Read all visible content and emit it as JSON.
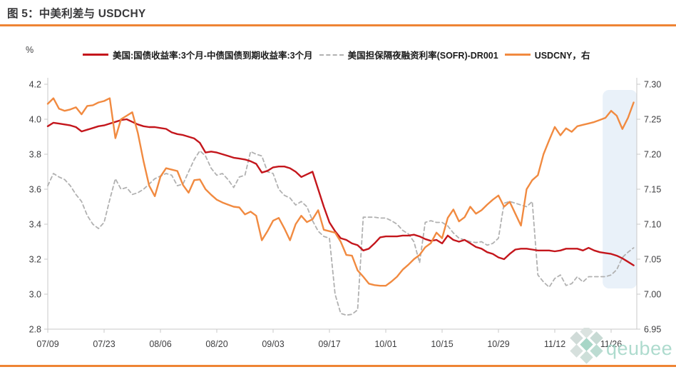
{
  "figure": {
    "title": "图 5：中美利差与 USDCHY",
    "unit_label_left": "%",
    "watermark_text": "qeubee"
  },
  "legend": [
    {
      "key": "us_cn_spread_3m",
      "label": "美国:国债收益率:3个月-中债国债到期收益率:3个月",
      "color": "#C4161C",
      "style": "solid"
    },
    {
      "key": "sofr_dr001",
      "label": "美国担保隔夜融资利率(SOFR)-DR001",
      "color": "#B1B1B1",
      "style": "dashed"
    },
    {
      "key": "usdcny",
      "label": "USDCNY，右",
      "color": "#F18A40",
      "style": "solid"
    }
  ],
  "colors": {
    "accent_orange": "#EE8434",
    "axis_line": "#C8C8C8",
    "tick_text": "#3E3E40",
    "title_text": "#39393B",
    "band_fill": "#E9F1F9",
    "watermark": "#A6D8C9"
  },
  "chart_data": {
    "type": "line",
    "title": "图 5：中美利差与 USDCHY",
    "grid": false,
    "legend_position": "top",
    "x_tick_labels": [
      "07/09",
      "07/23",
      "08/06",
      "08/20",
      "09/03",
      "09/17",
      "10/01",
      "10/15",
      "10/29",
      "11/12",
      "11/26"
    ],
    "x_tick_indices": [
      0,
      10,
      20,
      30,
      40,
      50,
      60,
      70,
      80,
      90,
      100
    ],
    "x_index_range": [
      0,
      104.6
    ],
    "left_axis": {
      "label": "%",
      "min": 2.8,
      "max": 4.2,
      "tick_step": 0.2,
      "ticks": [
        "4.2",
        "4.0",
        "3.8",
        "3.6",
        "3.4",
        "3.2",
        "3.0",
        "2.8"
      ]
    },
    "right_axis": {
      "label": "USDCNY",
      "min": 6.95,
      "max": 7.3,
      "tick_step": 0.05,
      "ticks": [
        "7.30",
        "7.25",
        "7.20",
        "7.15",
        "7.10",
        "7.05",
        "7.00",
        "6.95"
      ]
    },
    "highlight_band": {
      "x0_index": 98.5,
      "x1_index": 104.6,
      "color": "#E9F1F9"
    },
    "series": [
      {
        "key": "sofr_dr001",
        "name": "美国担保隔夜融资利率(SOFR)-DR001",
        "axis": "left",
        "color": "#B1B1B1",
        "dash": true,
        "values": [
          3.62,
          3.69,
          3.67,
          3.655,
          3.62,
          3.57,
          3.53,
          3.45,
          3.4,
          3.375,
          3.41,
          3.54,
          3.66,
          3.6,
          3.61,
          3.57,
          3.58,
          3.6,
          3.63,
          3.66,
          3.675,
          3.69,
          3.68,
          3.62,
          3.63,
          3.7,
          3.77,
          3.82,
          3.79,
          3.72,
          3.68,
          3.69,
          3.655,
          3.61,
          3.67,
          3.68,
          3.815,
          3.8,
          3.79,
          3.7,
          3.69,
          3.6,
          3.565,
          3.55,
          3.51,
          3.53,
          3.5,
          3.42,
          3.36,
          3.33,
          3.32,
          3.0,
          2.89,
          2.88,
          2.885,
          2.91,
          3.44,
          3.44,
          3.44,
          3.435,
          3.435,
          3.42,
          3.4,
          3.365,
          3.345,
          3.3,
          3.18,
          3.41,
          3.42,
          3.41,
          3.41,
          3.39,
          3.35,
          3.32,
          3.31,
          3.3,
          3.295,
          3.3,
          3.28,
          3.29,
          3.32,
          3.52,
          3.53,
          3.52,
          3.51,
          3.5,
          3.53,
          3.11,
          3.07,
          3.04,
          3.09,
          3.11,
          3.05,
          3.06,
          3.1,
          3.07,
          3.1,
          3.1,
          3.1,
          3.1,
          3.11,
          3.14,
          3.21,
          3.24,
          3.265
        ]
      },
      {
        "key": "us_cn_spread_3m",
        "name": "美国:国债收益率:3个月-中债国债到期收益率:3个月",
        "axis": "left",
        "color": "#C4161C",
        "dash": false,
        "values": [
          3.96,
          3.98,
          3.975,
          3.97,
          3.965,
          3.955,
          3.93,
          3.94,
          3.95,
          3.96,
          3.965,
          3.975,
          3.985,
          3.995,
          4.0,
          3.985,
          3.97,
          3.96,
          3.955,
          3.955,
          3.95,
          3.945,
          3.925,
          3.915,
          3.91,
          3.9,
          3.89,
          3.865,
          3.81,
          3.815,
          3.81,
          3.8,
          3.79,
          3.78,
          3.775,
          3.77,
          3.76,
          3.745,
          3.695,
          3.705,
          3.725,
          3.73,
          3.73,
          3.72,
          3.7,
          3.67,
          3.685,
          3.7,
          3.6,
          3.5,
          3.41,
          3.36,
          3.32,
          3.31,
          3.29,
          3.28,
          3.25,
          3.26,
          3.29,
          3.325,
          3.33,
          3.33,
          3.33,
          3.335,
          3.335,
          3.34,
          3.33,
          3.315,
          3.305,
          3.31,
          3.29,
          3.335,
          3.31,
          3.3,
          3.31,
          3.29,
          3.27,
          3.26,
          3.24,
          3.23,
          3.21,
          3.2,
          3.23,
          3.255,
          3.26,
          3.26,
          3.255,
          3.25,
          3.25,
          3.25,
          3.245,
          3.25,
          3.26,
          3.26,
          3.26,
          3.25,
          3.265,
          3.25,
          3.24,
          3.235,
          3.23,
          3.22,
          3.205,
          3.185,
          3.165
        ]
      },
      {
        "key": "usdcny",
        "name": "USDCNY，右",
        "axis": "right",
        "color": "#F18A40",
        "dash": false,
        "values": [
          7.272,
          7.28,
          7.265,
          7.262,
          7.264,
          7.267,
          7.257,
          7.269,
          7.27,
          7.274,
          7.276,
          7.28,
          7.223,
          7.25,
          7.255,
          7.26,
          7.23,
          7.19,
          7.155,
          7.14,
          7.168,
          7.18,
          7.178,
          7.176,
          7.156,
          7.145,
          7.163,
          7.164,
          7.15,
          7.142,
          7.135,
          7.131,
          7.128,
          7.125,
          7.124,
          7.114,
          7.118,
          7.112,
          7.077,
          7.09,
          7.105,
          7.109,
          7.094,
          7.077,
          7.1,
          7.112,
          7.103,
          7.107,
          7.12,
          7.092,
          7.09,
          7.088,
          7.075,
          7.056,
          7.055,
          7.034,
          7.025,
          7.015,
          7.013,
          7.012,
          7.012,
          7.018,
          7.025,
          7.035,
          7.042,
          7.05,
          7.056,
          7.067,
          7.073,
          7.088,
          7.08,
          7.109,
          7.121,
          7.104,
          7.11,
          7.125,
          7.115,
          7.12,
          7.128,
          7.135,
          7.141,
          7.125,
          7.132,
          7.115,
          7.098,
          7.15,
          7.163,
          7.17,
          7.2,
          7.22,
          7.239,
          7.227,
          7.237,
          7.232,
          7.24,
          7.242,
          7.244,
          7.246,
          7.249,
          7.252,
          7.262,
          7.255,
          7.236,
          7.252,
          7.274
        ]
      }
    ]
  }
}
